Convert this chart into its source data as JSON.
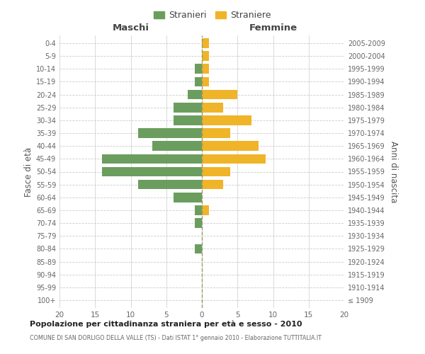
{
  "age_groups": [
    "100+",
    "95-99",
    "90-94",
    "85-89",
    "80-84",
    "75-79",
    "70-74",
    "65-69",
    "60-64",
    "55-59",
    "50-54",
    "45-49",
    "40-44",
    "35-39",
    "30-34",
    "25-29",
    "20-24",
    "15-19",
    "10-14",
    "5-9",
    "0-4"
  ],
  "birth_years": [
    "≤ 1909",
    "1910-1914",
    "1915-1919",
    "1920-1924",
    "1925-1929",
    "1930-1934",
    "1935-1939",
    "1940-1944",
    "1945-1949",
    "1950-1954",
    "1955-1959",
    "1960-1964",
    "1965-1969",
    "1970-1974",
    "1975-1979",
    "1980-1984",
    "1985-1989",
    "1990-1994",
    "1995-1999",
    "2000-2004",
    "2005-2009"
  ],
  "maschi": [
    0,
    0,
    0,
    0,
    1,
    0,
    1,
    1,
    4,
    9,
    14,
    14,
    7,
    9,
    4,
    4,
    2,
    1,
    1,
    0,
    0
  ],
  "femmine": [
    0,
    0,
    0,
    0,
    0,
    0,
    0,
    1,
    0,
    3,
    4,
    9,
    8,
    4,
    7,
    3,
    5,
    1,
    1,
    1,
    1
  ],
  "maschi_color": "#6b9e5e",
  "femmine_color": "#f0b429",
  "bg_color": "#ffffff",
  "grid_color": "#cccccc",
  "title": "Popolazione per cittadinanza straniera per età e sesso - 2010",
  "subtitle": "COMUNE DI SAN DORLIGO DELLA VALLE (TS) - Dati ISTAT 1° gennaio 2010 - Elaborazione TUTTITALIA.IT",
  "ylabel_left": "Fasce di età",
  "ylabel_right": "Anni di nascita",
  "xlabel_left": "Maschi",
  "xlabel_top_right": "Femmine",
  "legend_maschi": "Stranieri",
  "legend_femmine": "Straniere",
  "xlim": 20,
  "bar_height": 0.75
}
